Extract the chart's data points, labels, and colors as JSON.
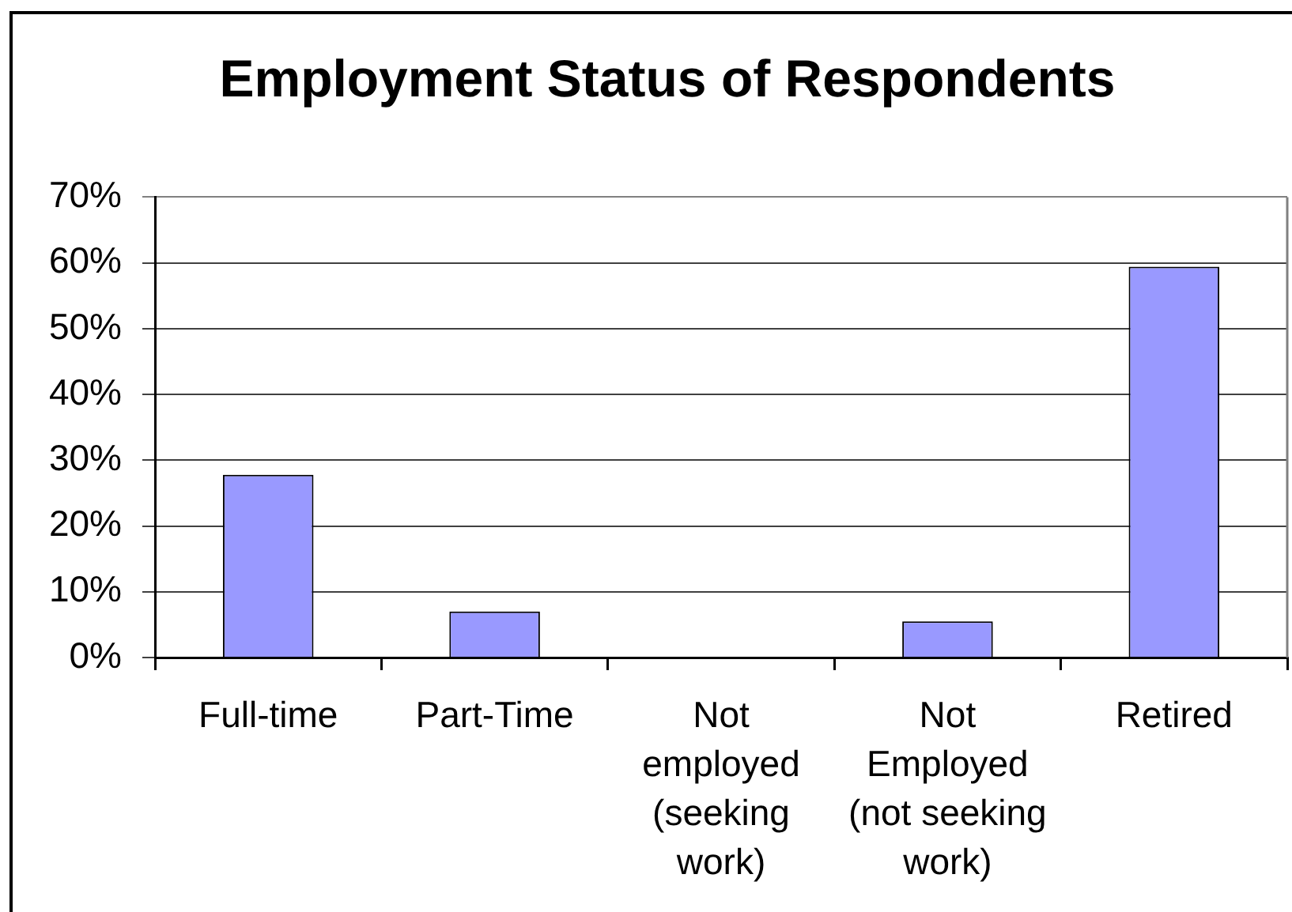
{
  "chart_data": {
    "type": "bar",
    "title": "Employment Status of Respondents",
    "categories": [
      "Full-time",
      "Part-Time",
      "Not employed (seeking work)",
      "Not Employed (not seeking work)",
      "Retired"
    ],
    "values": [
      27.8,
      7.0,
      0,
      5.5,
      59.4
    ],
    "color": "#9999ff",
    "ylim": [
      0,
      70
    ],
    "yticks": [
      {
        "value": 0,
        "label": "0%"
      },
      {
        "value": 10,
        "label": "10%"
      },
      {
        "value": 20,
        "label": "20%"
      },
      {
        "value": 30,
        "label": "30%"
      },
      {
        "value": 40,
        "label": "40%"
      },
      {
        "value": 50,
        "label": "50%"
      },
      {
        "value": 60,
        "label": "60%"
      },
      {
        "value": 70,
        "label": "70%"
      }
    ],
    "grid": "y"
  }
}
